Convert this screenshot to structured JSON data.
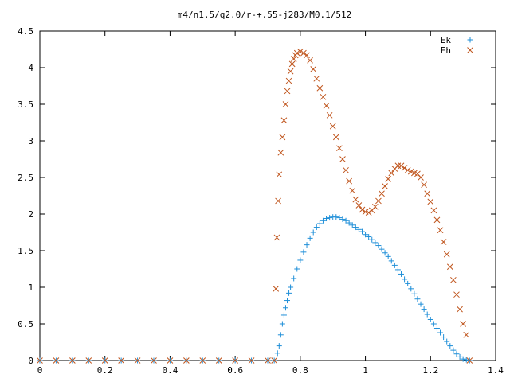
{
  "chart_data": {
    "type": "scatter",
    "title": "m4/n1.5/q2.0/r-+.55-j283/M0.1/512",
    "xlim": [
      0,
      1.4
    ],
    "ylim": [
      0,
      4.5
    ],
    "x_ticks": [
      "0",
      "0.2",
      "0.4",
      "0.6",
      "0.8",
      "1",
      "1.2",
      "1.4"
    ],
    "y_ticks": [
      "0",
      "0.5",
      "1",
      "1.5",
      "2",
      "2.5",
      "3",
      "3.5",
      "4",
      "4.5"
    ],
    "grid": false,
    "legend_position": "top-right",
    "series": [
      {
        "name": "Ek",
        "marker": "plus",
        "color": "#1f8fd8",
        "points": [
          [
            0.0,
            0
          ],
          [
            0.05,
            0
          ],
          [
            0.1,
            0
          ],
          [
            0.15,
            0
          ],
          [
            0.2,
            0
          ],
          [
            0.25,
            0
          ],
          [
            0.3,
            0
          ],
          [
            0.35,
            0
          ],
          [
            0.4,
            0
          ],
          [
            0.45,
            0
          ],
          [
            0.5,
            0
          ],
          [
            0.55,
            0
          ],
          [
            0.6,
            0
          ],
          [
            0.65,
            0
          ],
          [
            0.7,
            0
          ],
          [
            0.72,
            0
          ],
          [
            0.73,
            0.1
          ],
          [
            0.735,
            0.2
          ],
          [
            0.74,
            0.35
          ],
          [
            0.745,
            0.5
          ],
          [
            0.75,
            0.62
          ],
          [
            0.755,
            0.72
          ],
          [
            0.76,
            0.82
          ],
          [
            0.765,
            0.92
          ],
          [
            0.77,
            1.0
          ],
          [
            0.78,
            1.12
          ],
          [
            0.79,
            1.25
          ],
          [
            0.8,
            1.37
          ],
          [
            0.81,
            1.48
          ],
          [
            0.82,
            1.58
          ],
          [
            0.83,
            1.67
          ],
          [
            0.84,
            1.75
          ],
          [
            0.85,
            1.82
          ],
          [
            0.86,
            1.87
          ],
          [
            0.87,
            1.91
          ],
          [
            0.88,
            1.94
          ],
          [
            0.89,
            1.95
          ],
          [
            0.9,
            1.96
          ],
          [
            0.91,
            1.96
          ],
          [
            0.92,
            1.95
          ],
          [
            0.93,
            1.93
          ],
          [
            0.94,
            1.91
          ],
          [
            0.95,
            1.88
          ],
          [
            0.96,
            1.85
          ],
          [
            0.97,
            1.82
          ],
          [
            0.98,
            1.79
          ],
          [
            0.99,
            1.76
          ],
          [
            1.0,
            1.72
          ],
          [
            1.01,
            1.69
          ],
          [
            1.02,
            1.65
          ],
          [
            1.03,
            1.61
          ],
          [
            1.04,
            1.57
          ],
          [
            1.05,
            1.52
          ],
          [
            1.06,
            1.47
          ],
          [
            1.07,
            1.42
          ],
          [
            1.08,
            1.36
          ],
          [
            1.09,
            1.3
          ],
          [
            1.1,
            1.24
          ],
          [
            1.11,
            1.18
          ],
          [
            1.12,
            1.11
          ],
          [
            1.13,
            1.05
          ],
          [
            1.14,
            0.98
          ],
          [
            1.15,
            0.91
          ],
          [
            1.16,
            0.84
          ],
          [
            1.17,
            0.77
          ],
          [
            1.18,
            0.7
          ],
          [
            1.19,
            0.63
          ],
          [
            1.2,
            0.56
          ],
          [
            1.21,
            0.5
          ],
          [
            1.22,
            0.44
          ],
          [
            1.23,
            0.38
          ],
          [
            1.24,
            0.32
          ],
          [
            1.25,
            0.26
          ],
          [
            1.26,
            0.2
          ],
          [
            1.27,
            0.14
          ],
          [
            1.28,
            0.09
          ],
          [
            1.29,
            0.05
          ],
          [
            1.3,
            0.02
          ],
          [
            1.31,
            0.01
          ],
          [
            1.32,
            0
          ]
        ]
      },
      {
        "name": "Eh",
        "marker": "cross",
        "color": "#c0561e",
        "points": [
          [
            0.0,
            0
          ],
          [
            0.05,
            0
          ],
          [
            0.1,
            0
          ],
          [
            0.15,
            0
          ],
          [
            0.2,
            0
          ],
          [
            0.25,
            0
          ],
          [
            0.3,
            0
          ],
          [
            0.35,
            0
          ],
          [
            0.4,
            0
          ],
          [
            0.45,
            0
          ],
          [
            0.5,
            0
          ],
          [
            0.55,
            0
          ],
          [
            0.6,
            0
          ],
          [
            0.65,
            0
          ],
          [
            0.7,
            0
          ],
          [
            0.72,
            0
          ],
          [
            0.725,
            0.98
          ],
          [
            0.728,
            1.68
          ],
          [
            0.732,
            2.18
          ],
          [
            0.735,
            2.54
          ],
          [
            0.74,
            2.84
          ],
          [
            0.745,
            3.05
          ],
          [
            0.75,
            3.28
          ],
          [
            0.755,
            3.5
          ],
          [
            0.76,
            3.68
          ],
          [
            0.765,
            3.82
          ],
          [
            0.77,
            3.95
          ],
          [
            0.775,
            4.05
          ],
          [
            0.78,
            4.12
          ],
          [
            0.785,
            4.17
          ],
          [
            0.79,
            4.2
          ],
          [
            0.8,
            4.22
          ],
          [
            0.81,
            4.2
          ],
          [
            0.82,
            4.17
          ],
          [
            0.83,
            4.1
          ],
          [
            0.84,
            3.98
          ],
          [
            0.85,
            3.85
          ],
          [
            0.86,
            3.72
          ],
          [
            0.87,
            3.6
          ],
          [
            0.88,
            3.48
          ],
          [
            0.89,
            3.35
          ],
          [
            0.9,
            3.2
          ],
          [
            0.91,
            3.05
          ],
          [
            0.92,
            2.9
          ],
          [
            0.93,
            2.75
          ],
          [
            0.94,
            2.6
          ],
          [
            0.95,
            2.45
          ],
          [
            0.96,
            2.32
          ],
          [
            0.97,
            2.2
          ],
          [
            0.98,
            2.12
          ],
          [
            0.99,
            2.06
          ],
          [
            1.0,
            2.03
          ],
          [
            1.01,
            2.02
          ],
          [
            1.02,
            2.05
          ],
          [
            1.03,
            2.1
          ],
          [
            1.04,
            2.18
          ],
          [
            1.05,
            2.28
          ],
          [
            1.06,
            2.38
          ],
          [
            1.07,
            2.48
          ],
          [
            1.08,
            2.56
          ],
          [
            1.09,
            2.62
          ],
          [
            1.1,
            2.66
          ],
          [
            1.11,
            2.66
          ],
          [
            1.12,
            2.63
          ],
          [
            1.13,
            2.6
          ],
          [
            1.14,
            2.58
          ],
          [
            1.15,
            2.56
          ],
          [
            1.16,
            2.55
          ],
          [
            1.17,
            2.5
          ],
          [
            1.18,
            2.4
          ],
          [
            1.19,
            2.28
          ],
          [
            1.2,
            2.17
          ],
          [
            1.21,
            2.05
          ],
          [
            1.22,
            1.92
          ],
          [
            1.23,
            1.78
          ],
          [
            1.24,
            1.62
          ],
          [
            1.25,
            1.45
          ],
          [
            1.26,
            1.28
          ],
          [
            1.27,
            1.1
          ],
          [
            1.28,
            0.9
          ],
          [
            1.29,
            0.7
          ],
          [
            1.3,
            0.5
          ],
          [
            1.31,
            0.35
          ],
          [
            1.32,
            0
          ]
        ]
      }
    ]
  }
}
